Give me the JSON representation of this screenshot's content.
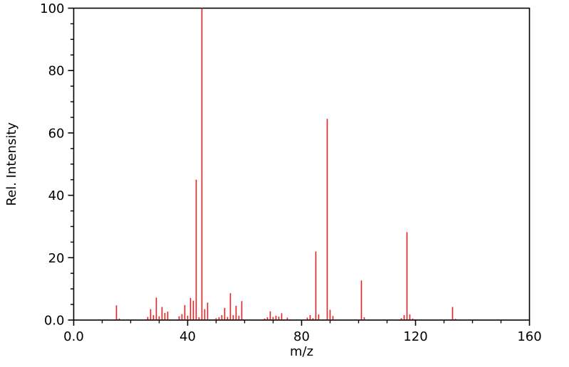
{
  "chart_data": {
    "type": "bar",
    "variant": "mass-spectrum-sticks",
    "title": "",
    "xlabel": "m/z",
    "ylabel": "Rel. Intensity",
    "xlim": [
      0,
      160
    ],
    "ylim": [
      0,
      100
    ],
    "x_major_ticks": [
      0,
      40,
      80,
      120,
      160
    ],
    "x_major_tick_labels": [
      "0.0",
      "40",
      "80",
      "120",
      "160"
    ],
    "x_minor_tick_interval": 10,
    "y_major_ticks": [
      0,
      20,
      40,
      60,
      80,
      100
    ],
    "y_major_tick_labels": [
      "0.0",
      "20",
      "40",
      "60",
      "80",
      "100"
    ],
    "y_minor_tick_interval": 5,
    "grid": false,
    "legend": false,
    "bar_color": "#dd2222",
    "axis_color": "#000000",
    "background_color": "#ffffff",
    "peaks": [
      {
        "mz": 15,
        "intensity": 4.7
      },
      {
        "mz": 16,
        "intensity": 0.5
      },
      {
        "mz": 26,
        "intensity": 1.0
      },
      {
        "mz": 27,
        "intensity": 3.5
      },
      {
        "mz": 28,
        "intensity": 1.6
      },
      {
        "mz": 29,
        "intensity": 7.2
      },
      {
        "mz": 30,
        "intensity": 1.2
      },
      {
        "mz": 31,
        "intensity": 4.2
      },
      {
        "mz": 32,
        "intensity": 2.3
      },
      {
        "mz": 33,
        "intensity": 2.7
      },
      {
        "mz": 37,
        "intensity": 1.2
      },
      {
        "mz": 38,
        "intensity": 1.9
      },
      {
        "mz": 39,
        "intensity": 4.8
      },
      {
        "mz": 40,
        "intensity": 1.4
      },
      {
        "mz": 41,
        "intensity": 7.1
      },
      {
        "mz": 42,
        "intensity": 6.2
      },
      {
        "mz": 43,
        "intensity": 45.0
      },
      {
        "mz": 44,
        "intensity": 0.9
      },
      {
        "mz": 45,
        "intensity": 100.0
      },
      {
        "mz": 46,
        "intensity": 3.5
      },
      {
        "mz": 47,
        "intensity": 5.6
      },
      {
        "mz": 50,
        "intensity": 0.6
      },
      {
        "mz": 51,
        "intensity": 0.9
      },
      {
        "mz": 52,
        "intensity": 1.6
      },
      {
        "mz": 53,
        "intensity": 3.9
      },
      {
        "mz": 54,
        "intensity": 1.0
      },
      {
        "mz": 55,
        "intensity": 8.6
      },
      {
        "mz": 56,
        "intensity": 1.6
      },
      {
        "mz": 57,
        "intensity": 4.6
      },
      {
        "mz": 58,
        "intensity": 1.4
      },
      {
        "mz": 59,
        "intensity": 6.1
      },
      {
        "mz": 67,
        "intensity": 0.5
      },
      {
        "mz": 68,
        "intensity": 0.9
      },
      {
        "mz": 69,
        "intensity": 2.8
      },
      {
        "mz": 70,
        "intensity": 1.0
      },
      {
        "mz": 71,
        "intensity": 1.4
      },
      {
        "mz": 72,
        "intensity": 1.1
      },
      {
        "mz": 73,
        "intensity": 2.2
      },
      {
        "mz": 75,
        "intensity": 0.8
      },
      {
        "mz": 82,
        "intensity": 0.8
      },
      {
        "mz": 83,
        "intensity": 1.6
      },
      {
        "mz": 84,
        "intensity": 0.6
      },
      {
        "mz": 85,
        "intensity": 22.0
      },
      {
        "mz": 86,
        "intensity": 1.8
      },
      {
        "mz": 89,
        "intensity": 64.5
      },
      {
        "mz": 90,
        "intensity": 3.3
      },
      {
        "mz": 91,
        "intensity": 1.3
      },
      {
        "mz": 101,
        "intensity": 12.7
      },
      {
        "mz": 102,
        "intensity": 0.9
      },
      {
        "mz": 115,
        "intensity": 0.6
      },
      {
        "mz": 116,
        "intensity": 1.6
      },
      {
        "mz": 117,
        "intensity": 28.2
      },
      {
        "mz": 118,
        "intensity": 1.8
      },
      {
        "mz": 119,
        "intensity": 0.5
      },
      {
        "mz": 133,
        "intensity": 4.2
      },
      {
        "mz": 134,
        "intensity": 0.4
      }
    ]
  }
}
